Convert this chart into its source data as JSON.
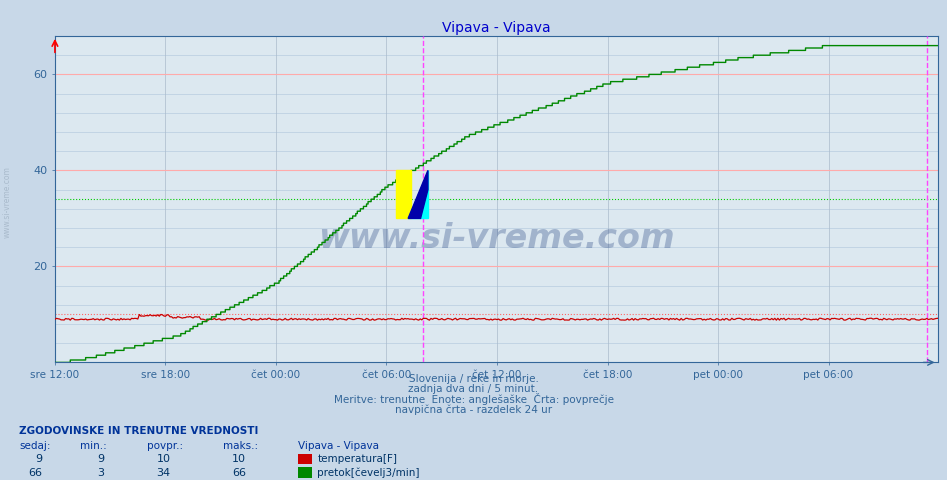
{
  "title": "Vipava - Vipava",
  "title_color": "#0000cc",
  "bg_color": "#c8d8e8",
  "plot_bg_color": "#dce8f0",
  "grid_color_major": "#ffaaaa",
  "grid_color_minor": "#b8cce0",
  "grid_color_minor_v": "#aabbcc",
  "xlabel_ticks": [
    "sre 12:00",
    "sre 18:00",
    "čet 00:00",
    "čet 06:00",
    "čet 12:00",
    "čet 18:00",
    "pet 00:00",
    "pet 06:00"
  ],
  "ylim_min": 0,
  "ylim_max": 68,
  "yticks": [
    20,
    40,
    60
  ],
  "n_points": 576,
  "temp_sedaj": 9,
  "temp_min": 9,
  "temp_povpr": 10,
  "temp_maks": 10,
  "flow_sedaj": 66,
  "flow_min": 3,
  "flow_povpr": 34,
  "flow_maks": 66,
  "temp_color": "#cc0000",
  "flow_color": "#008800",
  "avg_line_color_temp": "#ff6666",
  "avg_line_color_flow": "#00cc00",
  "vline_color": "#ff44ff",
  "watermark": "www.si-vreme.com",
  "watermark_color": "#1a3a7a",
  "footer_line1": "Slovenija / reke in morje.",
  "footer_line2": "zadnja dva dni / 5 minut.",
  "footer_line3": "Meritve: trenutne  Enote: anglešaške  Črta: povprečje",
  "footer_line4": "navpična črta - razdelek 24 ur",
  "footer_color": "#336699",
  "table_header": "ZGODOVINSKE IN TRENUTNE VREDNOSTI",
  "table_header_color": "#003399",
  "col_headers": [
    "sedaj:",
    "min.:",
    "povpr.:",
    "maks.:",
    "Vipava - Vipava"
  ],
  "legend_temp": "temperatura[F]",
  "legend_flow": "pretok[čevelj3/min]",
  "sidewater_color": "#aabbcc"
}
